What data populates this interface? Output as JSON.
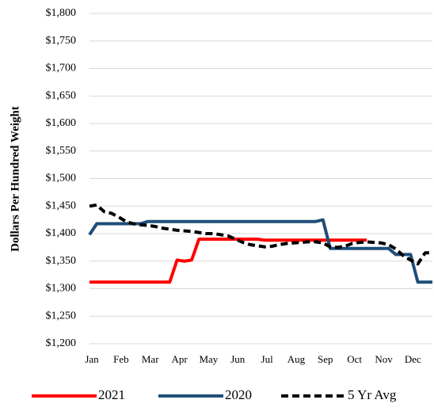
{
  "chart_data": {
    "type": "line",
    "y_label": "Dollars Per Hundred Weight",
    "categories": [
      "Jan",
      null,
      null,
      null,
      "Feb",
      null,
      null,
      null,
      "Mar",
      null,
      null,
      null,
      "Apr",
      null,
      null,
      null,
      "May",
      null,
      null,
      null,
      "Jun",
      null,
      null,
      null,
      "Jul",
      null,
      null,
      null,
      "Aug",
      null,
      null,
      null,
      "Sep",
      null,
      null,
      null,
      "Oct",
      null,
      null,
      null,
      "Nov",
      null,
      null,
      null,
      "Dec",
      null,
      null,
      null
    ],
    "series": [
      {
        "name": "2021",
        "color": "#ff0000",
        "dash": false,
        "values": [
          1312,
          1312,
          1312,
          1312,
          1312,
          1312,
          1312,
          1312,
          1312,
          1312,
          1312,
          1312,
          1352,
          1350,
          1352,
          1390,
          1390,
          1390,
          1390,
          1390,
          1390,
          1390,
          1390,
          1390,
          1388,
          1388,
          1388,
          1388,
          1388,
          1388,
          1388,
          1388,
          1388,
          1388,
          1388,
          1388,
          1388,
          1388,
          1388,
          null,
          null,
          null,
          null,
          null,
          null,
          null,
          null,
          null
        ]
      },
      {
        "name": "2020",
        "color": "#1f4e79",
        "dash": false,
        "values": [
          1398,
          1418,
          1418,
          1418,
          1418,
          1418,
          1418,
          1418,
          1422,
          1422,
          1422,
          1422,
          1422,
          1422,
          1422,
          1422,
          1422,
          1422,
          1422,
          1422,
          1422,
          1422,
          1422,
          1422,
          1422,
          1422,
          1422,
          1422,
          1422,
          1422,
          1422,
          1422,
          1425,
          1373,
          1373,
          1373,
          1373,
          1373,
          1373,
          1373,
          1373,
          1373,
          1362,
          1362,
          1362,
          1312,
          1312,
          1312
        ]
      },
      {
        "name": "5 Yr Avg",
        "color": "#000000",
        "dash": true,
        "values": [
          1450,
          1452,
          1440,
          1437,
          1430,
          1422,
          1418,
          1416,
          1415,
          1413,
          1410,
          1408,
          1406,
          1405,
          1404,
          1402,
          1400,
          1400,
          1398,
          1396,
          1390,
          1384,
          1380,
          1378,
          1376,
          1377,
          1380,
          1382,
          1383,
          1384,
          1385,
          1385,
          1383,
          1376,
          1375,
          1377,
          1382,
          1384,
          1385,
          1384,
          1383,
          1380,
          1372,
          1360,
          1352,
          1345,
          1365,
          1365
        ]
      }
    ],
    "ylim": [
      1200,
      1800
    ],
    "yticks": [
      {
        "value": 1200,
        "label": "$1,200"
      },
      {
        "value": 1250,
        "label": "$1,250"
      },
      {
        "value": 1300,
        "label": "$1,300"
      },
      {
        "value": 1350,
        "label": "$1,350"
      },
      {
        "value": 1400,
        "label": "$1,400"
      },
      {
        "value": 1450,
        "label": "$1,450"
      },
      {
        "value": 1500,
        "label": "$1,500"
      },
      {
        "value": 1550,
        "label": "$1,550"
      },
      {
        "value": 1600,
        "label": "$1,600"
      },
      {
        "value": 1650,
        "label": "$1,650"
      },
      {
        "value": 1700,
        "label": "$1,700"
      },
      {
        "value": 1750,
        "label": "$1,750"
      },
      {
        "value": 1800,
        "label": "$1,800"
      }
    ],
    "grid": true
  }
}
